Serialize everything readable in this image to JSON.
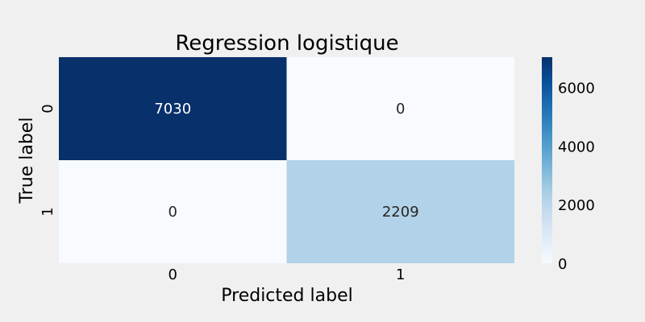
{
  "chart_data": {
    "type": "heatmap",
    "title": "Regression logistique",
    "xlabel": "Predicted label",
    "ylabel": "True label",
    "x_categories": [
      "0",
      "1"
    ],
    "y_categories": [
      "0",
      "1"
    ],
    "values": [
      [
        7030,
        0
      ],
      [
        0,
        2209
      ]
    ],
    "colormap": "Blues",
    "colorbar": {
      "range": [
        0,
        7030
      ],
      "ticks": [
        0,
        2000,
        4000,
        6000
      ]
    },
    "grid": false,
    "legend": "colorbar-right"
  },
  "colors": {
    "background": "#f0f0f0",
    "colormap_stops": [
      "#f7fbff",
      "#deebf7",
      "#c6dbef",
      "#9ecae1",
      "#6baed6",
      "#4292c6",
      "#2171b5",
      "#08519c",
      "#08306b"
    ]
  }
}
